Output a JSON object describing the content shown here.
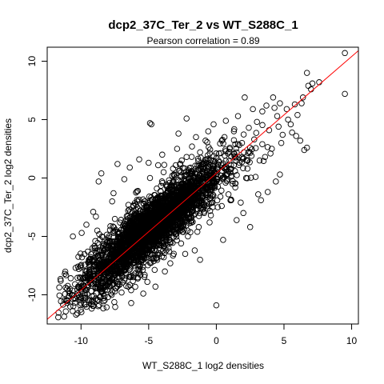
{
  "chart_data": {
    "type": "scatter",
    "title": "dcp2_37C_Ter_2 vs WT_S288C_1",
    "subtitle": "Pearson correlation =  0.89",
    "xlabel": "WT_S288C_1 log2 densities",
    "ylabel": "dcp2_37C_Ter_2 log2 densities",
    "xlim": [
      -12.5,
      10.5
    ],
    "ylim": [
      -12.5,
      11.2
    ],
    "xticks": [
      -10,
      -5,
      0,
      5,
      10
    ],
    "yticks": [
      -10,
      -5,
      0,
      5,
      10
    ],
    "grid": false,
    "fit_line": {
      "intercept": 0.4,
      "slope": 1.0,
      "color": "#ff0000"
    },
    "point_color": "#000000",
    "points": [
      [
        9.5,
        10.7
      ],
      [
        9.5,
        7.2
      ],
      [
        7.6,
        8.2
      ],
      [
        6.7,
        9.0
      ],
      [
        7.1,
        8.1
      ],
      [
        6.8,
        7.9
      ],
      [
        6.3,
        6.4
      ],
      [
        6.7,
        2.6
      ],
      [
        6.5,
        2.4
      ],
      [
        6.2,
        3.2
      ],
      [
        5.9,
        3.6
      ],
      [
        4.7,
        0.3
      ],
      [
        4.4,
        -0.3
      ],
      [
        3.8,
        -1.2
      ],
      [
        3.1,
        -1.4
      ],
      [
        2.9,
        0.1
      ],
      [
        -2.8,
        3.8
      ],
      [
        -4.8,
        4.6
      ],
      [
        -0.6,
        4.0
      ],
      [
        0.0,
        -10.9
      ],
      [
        2.1,
        6.9
      ],
      [
        4.2,
        6.9
      ],
      [
        4.7,
        6.4
      ],
      [
        3.4,
        5.7
      ],
      [
        -2.2,
        5.1
      ],
      [
        -4.9,
        4.7
      ],
      [
        -8.7,
        -0.3
      ],
      [
        -8.5,
        0.4
      ],
      [
        -7.3,
        1.2
      ],
      [
        -10.6,
        -5.0
      ],
      [
        -11.2,
        -8.2
      ],
      [
        -11.0,
        -10.7
      ],
      [
        -10.8,
        -11.0
      ],
      [
        -9.4,
        -10.5
      ],
      [
        -7.8,
        -9.9
      ],
      [
        -6.5,
        -9.3
      ],
      [
        -3.4,
        -7.3
      ],
      [
        -2.6,
        -5.6
      ],
      [
        -1.6,
        -6.2
      ],
      [
        -1.2,
        -7.0
      ],
      [
        0.5,
        -5.3
      ],
      [
        1.5,
        -3.6
      ],
      [
        -4.5,
        -9.3
      ],
      [
        -5.8,
        -8.6
      ],
      [
        -6.1,
        -7.2
      ],
      [
        2.5,
        -4.2
      ],
      [
        3.3,
        -1.9
      ],
      [
        -8.0,
        -10.2
      ],
      [
        -9.5,
        -6.3
      ],
      [
        -10.4,
        -7.7
      ],
      [
        -9.1,
        -2.9
      ],
      [
        -7.7,
        -2.0
      ],
      [
        -6.8,
        -0.1
      ],
      [
        -5.7,
        1.6
      ],
      [
        -4.0,
        2.0
      ],
      [
        -3.0,
        1.1
      ],
      [
        -1.8,
        2.7
      ],
      [
        -0.8,
        3.2
      ],
      [
        0.6,
        3.5
      ],
      [
        1.3,
        4.0
      ],
      [
        2.4,
        4.3
      ],
      [
        3.0,
        4.8
      ],
      [
        4.5,
        5.3
      ],
      [
        5.2,
        5.9
      ],
      [
        5.8,
        6.3
      ],
      [
        6.0,
        5.4
      ],
      [
        5.5,
        4.6
      ],
      [
        4.9,
        3.7
      ],
      [
        4.1,
        2.5
      ],
      [
        3.6,
        1.8
      ],
      [
        2.2,
        0.0
      ],
      [
        1.4,
        -0.8
      ],
      [
        0.4,
        -2.4
      ],
      [
        -0.5,
        -3.8
      ],
      [
        -1.4,
        -4.6
      ],
      [
        -2.3,
        -6.5
      ],
      [
        -3.8,
        -8.0
      ],
      [
        -5.1,
        -8.9
      ],
      [
        -7.0,
        -9.8
      ],
      [
        -9.8,
        -9.3
      ],
      [
        -10.1,
        -8.5
      ],
      [
        -8.3,
        -7.0
      ],
      [
        -7.1,
        -5.4
      ],
      [
        -6.2,
        -3.6
      ],
      [
        -5.3,
        -2.0
      ],
      [
        -4.4,
        -0.9
      ],
      [
        -3.5,
        -0.2
      ],
      [
        -2.0,
        0.3
      ],
      [
        -1.0,
        1.2
      ],
      [
        0.2,
        2.1
      ],
      [
        1.0,
        2.6
      ],
      [
        1.9,
        3.0
      ],
      [
        2.8,
        3.3
      ],
      [
        3.9,
        4.1
      ],
      [
        4.6,
        4.4
      ],
      [
        5.3,
        5.0
      ],
      [
        6.4,
        6.9
      ],
      [
        7.0,
        7.6
      ],
      [
        -9.0,
        -6.0
      ],
      [
        -8.8,
        -4.5
      ],
      [
        -7.5,
        -3.5
      ],
      [
        -6.6,
        -7.6
      ],
      [
        -5.5,
        -6.0
      ],
      [
        -4.6,
        -5.6
      ],
      [
        -3.1,
        -3.3
      ],
      [
        -2.4,
        -2.5
      ],
      [
        -1.7,
        -1.2
      ],
      [
        -0.3,
        -0.8
      ],
      [
        0.8,
        0.3
      ],
      [
        1.7,
        1.3
      ],
      [
        2.6,
        1.9
      ],
      [
        3.4,
        2.9
      ],
      [
        -11.5,
        -8.8
      ],
      [
        -10.9,
        -9.7
      ],
      [
        -8.2,
        -8.8
      ],
      [
        -6.9,
        -6.6
      ],
      [
        -5.9,
        -4.8
      ],
      [
        -4.2,
        -3.9
      ],
      [
        -3.3,
        -2.8
      ],
      [
        -2.7,
        -1.9
      ],
      [
        -1.1,
        -2.2
      ],
      [
        0.9,
        -1.4
      ],
      [
        1.8,
        -2.1
      ],
      [
        2.0,
        -3.0
      ],
      [
        -6.4,
        0.9
      ],
      [
        -5.0,
        1.3
      ],
      [
        -3.9,
        0.5
      ],
      [
        -2.9,
        2.5
      ],
      [
        -1.5,
        3.5
      ],
      [
        -0.2,
        4.6
      ],
      [
        0.7,
        4.9
      ],
      [
        1.6,
        5.3
      ],
      [
        2.7,
        5.9
      ],
      [
        3.7,
        6.2
      ],
      [
        4.3,
        6.0
      ],
      [
        -9.6,
        -4.0
      ],
      [
        -8.1,
        -5.5
      ],
      [
        -7.4,
        -6.7
      ],
      [
        -6.0,
        -5.8
      ],
      [
        -5.2,
        -4.4
      ],
      [
        -4.1,
        -4.9
      ],
      [
        -3.6,
        -5.7
      ],
      [
        -2.5,
        -4.6
      ],
      [
        -1.9,
        -3.7
      ],
      [
        -0.9,
        -3.0
      ],
      [
        0.1,
        -2.5
      ],
      [
        1.1,
        -1.9
      ],
      [
        -7.9,
        -7.7
      ],
      [
        -6.7,
        -8.1
      ],
      [
        -5.6,
        -7.1
      ],
      [
        -4.7,
        -6.8
      ],
      [
        -3.7,
        -6.2
      ],
      [
        -2.1,
        -5.0
      ],
      [
        -1.3,
        -4.2
      ],
      [
        -0.4,
        -3.2
      ],
      [
        0.3,
        -1.6
      ],
      [
        1.2,
        -0.5
      ],
      [
        2.3,
        0.8
      ],
      [
        3.2,
        1.5
      ],
      [
        4.0,
        2.1
      ],
      [
        4.8,
        3.0
      ],
      [
        5.6,
        3.9
      ],
      [
        -10.3,
        -10.1
      ],
      [
        -9.2,
        -10.8
      ],
      [
        -8.6,
        -9.4
      ],
      [
        -7.2,
        -8.5
      ],
      [
        -6.3,
        -9.6
      ],
      [
        -5.4,
        -9.9
      ],
      [
        -8.9,
        -3.3
      ],
      [
        -7.6,
        -1.3
      ],
      [
        -6.5,
        -2.3
      ],
      [
        -5.8,
        -1.1
      ],
      [
        -4.9,
        0.0
      ],
      [
        -4.3,
        1.1
      ],
      [
        -3.2,
        0.8
      ],
      [
        -2.2,
        1.8
      ],
      [
        -1.2,
        2.2
      ],
      [
        -0.1,
        1.4
      ],
      [
        1.5,
        2.2
      ],
      [
        2.5,
        2.6
      ]
    ]
  }
}
